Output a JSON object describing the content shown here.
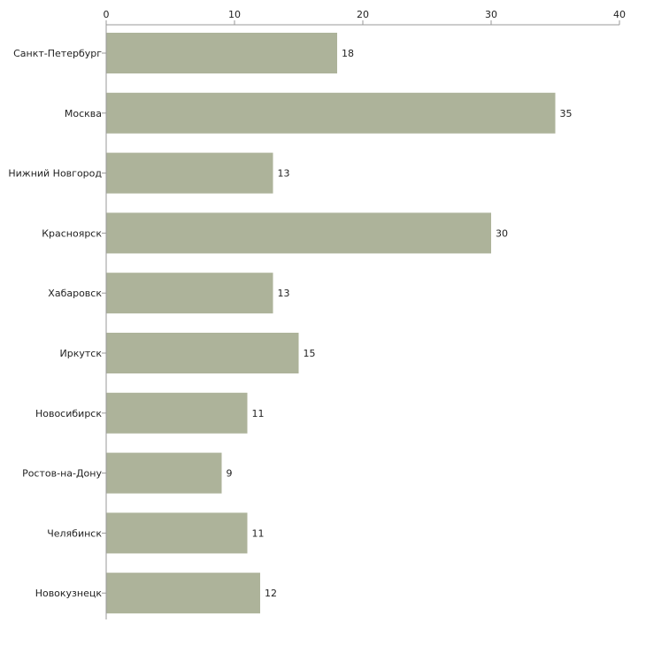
{
  "chart_data": {
    "type": "bar",
    "orientation": "horizontal",
    "title": "",
    "xlabel": "",
    "ylabel": "",
    "xlim": [
      0,
      40
    ],
    "xticks": [
      0,
      10,
      20,
      30,
      40
    ],
    "grid": false,
    "axis_position": "top",
    "categories": [
      "Санкт-Петербург",
      "Москва",
      "Нижний Новгород",
      "Красноярск",
      "Хабаровск",
      "Иркутск",
      "Новосибирск",
      "Ростов-на-Дону",
      "Челябинск",
      "Новокузнецк"
    ],
    "values": [
      18,
      35,
      13,
      30,
      13,
      15,
      11,
      9,
      11,
      12
    ],
    "colors": {
      "bar": "#adb39a",
      "axis": "#999999",
      "text": "#222222"
    }
  }
}
